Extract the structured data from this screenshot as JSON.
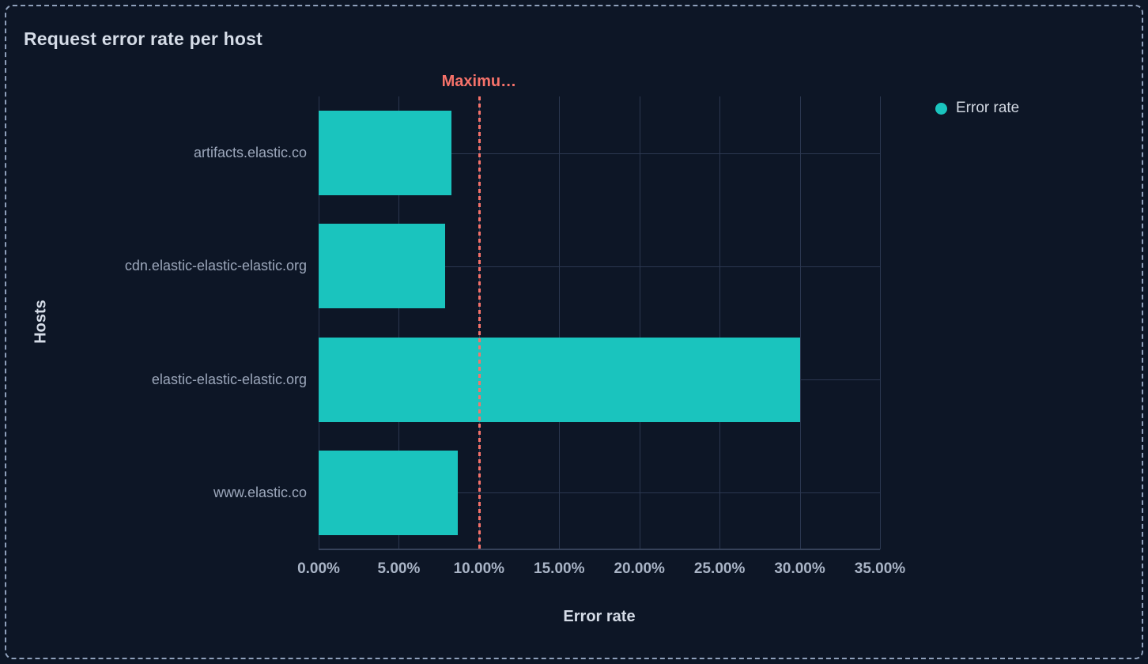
{
  "panel": {
    "title": "Request error rate per host"
  },
  "legend": {
    "items": [
      {
        "label": "Error rate",
        "color": "#1ac4be"
      }
    ]
  },
  "chart_data": {
    "type": "bar",
    "orientation": "horizontal",
    "title": "Request error rate per host",
    "xlabel": "Error rate",
    "ylabel": "Hosts",
    "categories": [
      "artifacts.elastic.co",
      "cdn.elastic-elastic-elastic.org",
      "elastic-elastic-elastic.org",
      "www.elastic.co"
    ],
    "series": [
      {
        "name": "Error rate",
        "values": [
          8.3,
          7.9,
          30.0,
          8.7
        ],
        "unit": "%"
      }
    ],
    "xlim": [
      0,
      35
    ],
    "x_tick_values": [
      0,
      5,
      10,
      15,
      20,
      25,
      30,
      35
    ],
    "x_tick_labels": [
      "0.00%",
      "5.00%",
      "10.00%",
      "15.00%",
      "20.00%",
      "25.00%",
      "30.00%",
      "35.00%"
    ],
    "grid": true,
    "legend_position": "top-right",
    "threshold": {
      "label": "Maximu…",
      "value": 10,
      "color": "#f6726a"
    }
  },
  "colors": {
    "background": "#0d1626",
    "panel_border": "#8fa0bb",
    "bar": "#1ac4be",
    "grid": "#2b3750",
    "axis_line": "#36425a",
    "title_text": "#d5dce7",
    "y_label_text": "#9ca7bb",
    "x_tick_text": "#a9b4c6",
    "threshold": "#f6726a",
    "legend_text": "#d3d9e3"
  }
}
